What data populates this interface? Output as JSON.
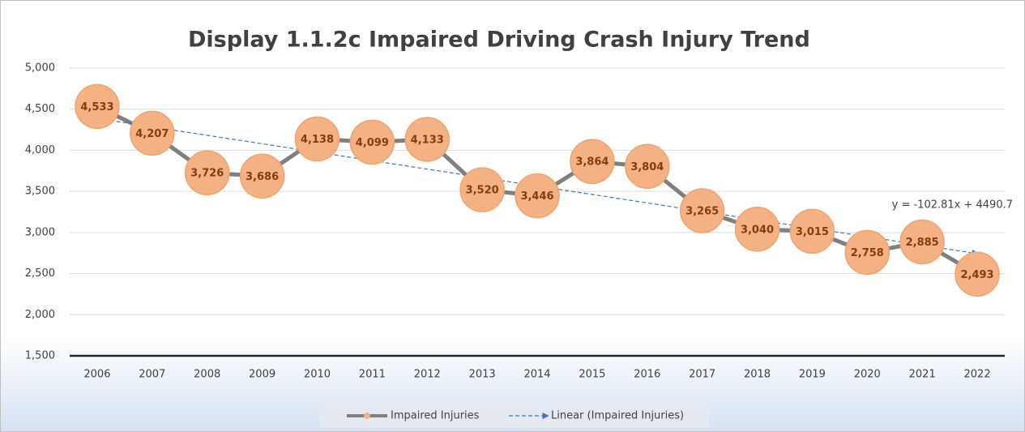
{
  "chart_data": {
    "type": "line",
    "title": "Display 1.1.2c Impaired Driving Crash Injury Trend",
    "categories": [
      "2006",
      "2007",
      "2008",
      "2009",
      "2010",
      "2011",
      "2012",
      "2013",
      "2014",
      "2015",
      "2016",
      "2017",
      "2018",
      "2019",
      "2020",
      "2021",
      "2022"
    ],
    "series": [
      {
        "name": "Impaired Injuries",
        "color": "#7f7f7f",
        "marker_color": "#f4b183",
        "values": [
          4533,
          4207,
          3726,
          3686,
          4138,
          4099,
          4133,
          3520,
          3446,
          3864,
          3804,
          3265,
          3040,
          3015,
          2758,
          2885,
          2493
        ],
        "value_labels": [
          "4,533",
          "4,207",
          "3,726",
          "3,686",
          "4,138",
          "4,099",
          "4,133",
          "3,520",
          "3,446",
          "3,864",
          "3,804",
          "3,265",
          "3,040",
          "3,015",
          "2,758",
          "2,885",
          "2,493"
        ]
      }
    ],
    "trendline": {
      "name": "Linear (Impaired Injuries)",
      "color": "#4472c4",
      "slope": -102.81,
      "intercept": 4490.7,
      "label": "y = -102.81x + 4490.7"
    },
    "ylim": [
      1500,
      5000
    ],
    "yticks": [
      {
        "value": 1500,
        "label": "1,500"
      },
      {
        "value": 2000,
        "label": "2,000"
      },
      {
        "value": 2500,
        "label": "2,500"
      },
      {
        "value": 3000,
        "label": "3,000"
      },
      {
        "value": 3500,
        "label": "3,500"
      },
      {
        "value": 4000,
        "label": "4,000"
      },
      {
        "value": 4500,
        "label": "4,500"
      },
      {
        "value": 5000,
        "label": "5,000"
      }
    ],
    "grid": true,
    "legend": "bottom"
  }
}
